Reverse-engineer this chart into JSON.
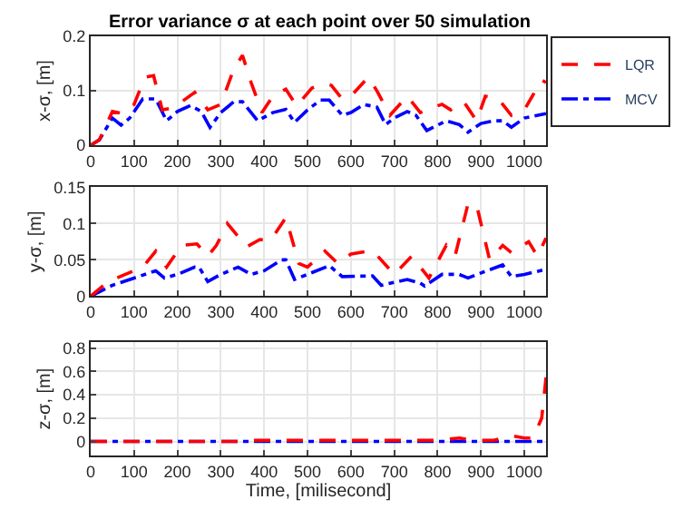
{
  "chart_data": [
    {
      "type": "line",
      "title": "Error variance σ at each point over 50 simulation",
      "ylabel": "x-σ, [m]",
      "xlim": [
        0,
        1050
      ],
      "xticks": [
        0,
        100,
        200,
        300,
        400,
        500,
        600,
        700,
        800,
        900,
        1000
      ],
      "ylim": [
        0,
        0.2
      ],
      "yticks": [
        0,
        0.1,
        0.2
      ],
      "grid": true,
      "legend": "top right",
      "marker": "none",
      "series": [
        {
          "name": "LQR",
          "color": "#ff0000",
          "line_style": "dashed",
          "x": [
            0,
            20,
            50,
            75,
            100,
            125,
            145,
            165,
            185,
            210,
            240,
            270,
            300,
            330,
            350,
            370,
            395,
            420,
            450,
            475,
            510,
            540,
            555,
            580,
            600,
            640,
            660,
            690,
            730,
            760,
            790,
            810,
            830,
            860,
            890,
            910,
            940,
            970,
            1000,
            1040,
            1050
          ],
          "values": [
            0,
            0.01,
            0.062,
            0.058,
            0.075,
            0.125,
            0.128,
            0.065,
            0.068,
            0.08,
            0.097,
            0.065,
            0.075,
            0.14,
            0.165,
            0.115,
            0.06,
            0.09,
            0.103,
            0.072,
            0.105,
            0.113,
            0.11,
            0.085,
            0.09,
            0.125,
            0.1,
            0.055,
            0.09,
            0.06,
            0.07,
            0.075,
            0.065,
            0.08,
            0.045,
            0.09,
            0.085,
            0.055,
            0.065,
            0.12,
            0.115
          ]
        },
        {
          "name": "MCV",
          "color": "#0000ff",
          "line_style": "dashdot",
          "x": [
            0,
            20,
            50,
            70,
            90,
            120,
            150,
            175,
            200,
            230,
            255,
            275,
            300,
            330,
            350,
            385,
            420,
            450,
            470,
            500,
            530,
            550,
            580,
            600,
            630,
            660,
            680,
            700,
            730,
            750,
            775,
            820,
            850,
            870,
            900,
            930,
            950,
            970,
            1000,
            1050
          ],
          "values": [
            0,
            0.01,
            0.05,
            0.037,
            0.05,
            0.085,
            0.085,
            0.045,
            0.062,
            0.073,
            0.062,
            0.033,
            0.06,
            0.08,
            0.08,
            0.045,
            0.06,
            0.066,
            0.042,
            0.065,
            0.083,
            0.083,
            0.055,
            0.06,
            0.075,
            0.07,
            0.038,
            0.05,
            0.062,
            0.055,
            0.027,
            0.045,
            0.038,
            0.024,
            0.04,
            0.045,
            0.045,
            0.033,
            0.05,
            0.058
          ]
        }
      ]
    },
    {
      "type": "line",
      "ylabel": "y-σ, [m]",
      "xlim": [
        0,
        1050
      ],
      "xticks": [
        0,
        100,
        200,
        300,
        400,
        500,
        600,
        700,
        800,
        900,
        1000
      ],
      "ylim": [
        0,
        0.15
      ],
      "yticks": [
        0,
        0.05,
        0.1,
        0.15
      ],
      "grid": true,
      "marker": "none",
      "series": [
        {
          "color": "#ff0000",
          "line_style": "dashed",
          "x": [
            0,
            40,
            100,
            120,
            150,
            175,
            210,
            245,
            270,
            290,
            315,
            360,
            390,
            415,
            450,
            480,
            500,
            540,
            570,
            600,
            650,
            700,
            740,
            780,
            820,
            840,
            870,
            890,
            920,
            950,
            970,
            1010,
            1030,
            1050
          ],
          "values": [
            0,
            0.02,
            0.035,
            0.04,
            0.062,
            0.04,
            0.07,
            0.072,
            0.055,
            0.07,
            0.1,
            0.068,
            0.078,
            0.077,
            0.108,
            0.045,
            0.04,
            0.062,
            0.045,
            0.058,
            0.063,
            0.03,
            0.055,
            0.025,
            0.07,
            0.055,
            0.127,
            0.125,
            0.05,
            0.07,
            0.06,
            0.075,
            0.055,
            0.08
          ]
        },
        {
          "color": "#0000ff",
          "line_style": "dashdot",
          "x": [
            0,
            50,
            100,
            150,
            170,
            200,
            240,
            250,
            270,
            300,
            340,
            370,
            400,
            440,
            450,
            470,
            500,
            550,
            580,
            650,
            670,
            730,
            760,
            770,
            810,
            850,
            870,
            900,
            950,
            970,
            1000,
            1050
          ],
          "values": [
            0,
            0.015,
            0.025,
            0.035,
            0.025,
            0.03,
            0.04,
            0.04,
            0.02,
            0.03,
            0.04,
            0.03,
            0.035,
            0.05,
            0.05,
            0.023,
            0.03,
            0.042,
            0.027,
            0.028,
            0.015,
            0.023,
            0.018,
            0.014,
            0.03,
            0.03,
            0.025,
            0.032,
            0.043,
            0.027,
            0.03,
            0.037
          ]
        }
      ]
    },
    {
      "type": "line",
      "ylabel": "z-σ, [m]",
      "xlabel": "Time, [milisecond]",
      "xlim": [
        0,
        1050
      ],
      "xticks": [
        0,
        100,
        200,
        300,
        400,
        500,
        600,
        700,
        800,
        900,
        1000
      ],
      "ylim": [
        -0.12,
        0.85
      ],
      "yticks": [
        0,
        0.2,
        0.4,
        0.6,
        0.8
      ],
      "grid": true,
      "marker": "none",
      "series": [
        {
          "color": "#ff0000",
          "line_style": "dashed",
          "x": [
            0,
            350,
            380,
            800,
            850,
            880,
            930,
            970,
            1000,
            1020,
            1040,
            1050
          ],
          "values": [
            0,
            0,
            0.01,
            0.01,
            0.03,
            0.01,
            0.01,
            0.05,
            0.03,
            0.03,
            0.2,
            0.55
          ]
        },
        {
          "color": "#0000ff",
          "line_style": "dashdot",
          "x": [
            0,
            1050
          ],
          "values": [
            0,
            0
          ]
        }
      ]
    }
  ]
}
